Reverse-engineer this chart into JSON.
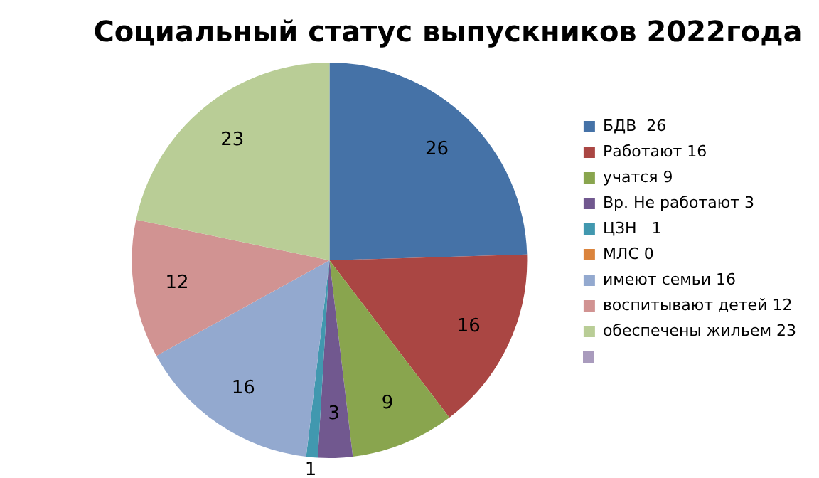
{
  "chart_data": {
    "type": "pie",
    "title": "Социальный статус выпускников 2022года",
    "categories": [
      "БДВ  26",
      "Работают 16",
      "учатся 9",
      "Вр. Не работают 3",
      "ЦЗН   1",
      "МЛС 0",
      "имеют семьи 16",
      "воспитывают детей 12",
      "обеспечены жильем 23"
    ],
    "values": [
      26,
      16,
      9,
      3,
      1,
      0,
      16,
      12,
      23
    ],
    "colors": [
      "#4572a7",
      "#aa4643",
      "#89a54e",
      "#71588f",
      "#4198af",
      "#db843d",
      "#93a9cf",
      "#d19392",
      "#b9cd96"
    ],
    "value_labels": [
      "26",
      "16",
      "9",
      "3",
      "1",
      null,
      "16",
      "12",
      "23"
    ],
    "legend": "right"
  }
}
